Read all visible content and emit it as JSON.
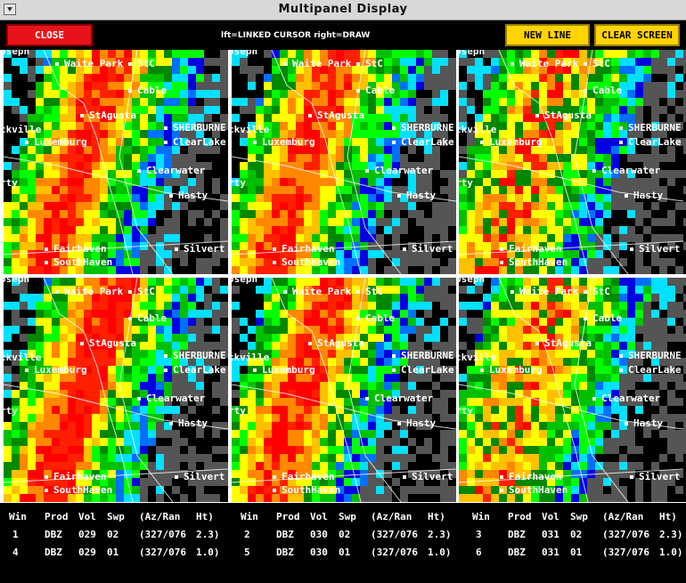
{
  "window": {
    "title": "Multipanel Display"
  },
  "toolbar": {
    "close_label": "CLOSE",
    "hint": "lft=LINKED CURSOR  right=DRAW",
    "new_line_label": "NEW LINE",
    "clear_label": "CLEAR SCREEN"
  },
  "colors": {
    "accent_red": "#e8121b",
    "button_yellow": "#ffd400"
  },
  "map_labels": [
    {
      "text": "Waite Park",
      "dot": true
    },
    {
      "text": "Cable",
      "dot": true
    },
    {
      "text": "StAgusta",
      "dot": true
    },
    {
      "text": "SHERBURNE",
      "dot": true
    },
    {
      "text": "ckville",
      "dot": false
    },
    {
      "text": "Luxemburg",
      "dot": true
    },
    {
      "text": "ClearLake",
      "dot": true
    },
    {
      "text": "Clearwater",
      "dot": true
    },
    {
      "text": "rty",
      "dot": false
    },
    {
      "text": "Hasty",
      "dot": true
    },
    {
      "text": "Fairhaven",
      "dot": true
    },
    {
      "text": "SouthHaven",
      "dot": true
    },
    {
      "text": "Silvert",
      "dot": true
    },
    {
      "text": "StC",
      "dot": true
    },
    {
      "text": "osepn",
      "dot": false
    }
  ],
  "panel_names": [
    "panel-1",
    "panel-2",
    "panel-3",
    "panel-4",
    "panel-5",
    "panel-6"
  ],
  "info": {
    "headers": [
      "Win",
      "Prod",
      "Vol",
      "Swp",
      "(Az/Ran",
      "Ht)"
    ],
    "rows": [
      [
        {
          "win": "1",
          "prod": "DBZ",
          "vol": "029",
          "swp": "02",
          "az": "(327/076",
          "ht": "2.3)"
        },
        {
          "win": "4",
          "prod": "DBZ",
          "vol": "029",
          "swp": "01",
          "az": "(327/076",
          "ht": "1.0)"
        }
      ],
      [
        {
          "win": "2",
          "prod": "DBZ",
          "vol": "030",
          "swp": "02",
          "az": "(327/076",
          "ht": "2.3)"
        },
        {
          "win": "5",
          "prod": "DBZ",
          "vol": "030",
          "swp": "01",
          "az": "(327/076",
          "ht": "1.0)"
        }
      ],
      [
        {
          "win": "3",
          "prod": "DBZ",
          "vol": "031",
          "swp": "02",
          "az": "(327/076",
          "ht": "2.3)"
        },
        {
          "win": "6",
          "prod": "DBZ",
          "vol": "031",
          "swp": "01",
          "az": "(327/076",
          "ht": "1.0)"
        }
      ]
    ]
  }
}
